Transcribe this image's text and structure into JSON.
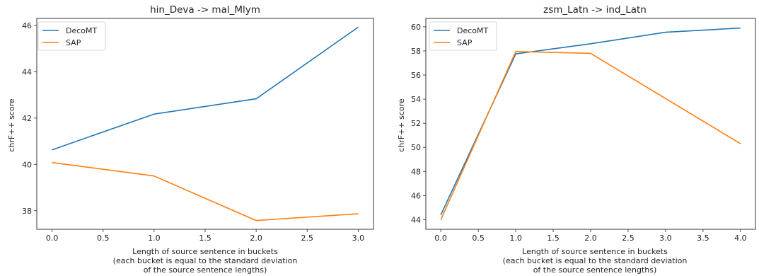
{
  "chart_data": [
    {
      "type": "line",
      "title": "hin_Deva -> mal_Mlym",
      "xlabel": [
        "Length of source sentence in buckets",
        "(each bucket is equal to the standard deviation",
        "of the source sentence lengths)"
      ],
      "ylabel": "chrF++ score",
      "xlim": [
        -0.15,
        3.15
      ],
      "ylim": [
        37.2,
        46.3
      ],
      "xticks": [
        0.0,
        0.5,
        1.0,
        1.5,
        2.0,
        2.5,
        3.0
      ],
      "xtick_labels": [
        "0.0",
        "0.5",
        "1.0",
        "1.5",
        "2.0",
        "2.5",
        "3.0"
      ],
      "yticks": [
        38,
        40,
        42,
        44,
        46
      ],
      "ytick_labels": [
        "38",
        "40",
        "42",
        "44",
        "46"
      ],
      "grid": false,
      "legend": "top-left",
      "series": [
        {
          "name": "DecoMT",
          "color": "#1f77b4",
          "x": [
            0,
            1,
            2,
            3
          ],
          "y": [
            40.63,
            42.17,
            42.83,
            45.92
          ]
        },
        {
          "name": "SAP",
          "color": "#ff7f0e",
          "x": [
            0,
            1,
            2,
            3
          ],
          "y": [
            40.08,
            39.5,
            37.58,
            37.87
          ]
        }
      ]
    },
    {
      "type": "line",
      "title": "zsm_Latn -> ind_Latn",
      "xlabel": [
        "Length of source sentence in buckets",
        "(each bucket is equal to the standard deviation",
        "of the source sentence lengths)"
      ],
      "ylabel": "chrF++ score",
      "xlim": [
        -0.2,
        4.2
      ],
      "ylim": [
        43.2,
        60.7
      ],
      "xticks": [
        0.0,
        0.5,
        1.0,
        1.5,
        2.0,
        2.5,
        3.0,
        3.5,
        4.0
      ],
      "xtick_labels": [
        "0.0",
        "0.5",
        "1.0",
        "1.5",
        "2.0",
        "2.5",
        "3.0",
        "3.5",
        "4.0"
      ],
      "yticks": [
        44,
        46,
        48,
        50,
        52,
        54,
        56,
        58,
        60
      ],
      "ytick_labels": [
        "44",
        "46",
        "48",
        "50",
        "52",
        "54",
        "56",
        "58",
        "60"
      ],
      "grid": false,
      "legend": "top-left",
      "series": [
        {
          "name": "DecoMT",
          "color": "#1f77b4",
          "x": [
            0,
            1,
            2,
            3,
            4
          ],
          "y": [
            44.4,
            57.75,
            58.6,
            59.55,
            59.9
          ]
        },
        {
          "name": "SAP",
          "color": "#ff7f0e",
          "x": [
            0,
            1,
            2,
            3,
            4
          ],
          "y": [
            44.0,
            57.95,
            57.8,
            54.05,
            50.3
          ]
        }
      ]
    }
  ]
}
